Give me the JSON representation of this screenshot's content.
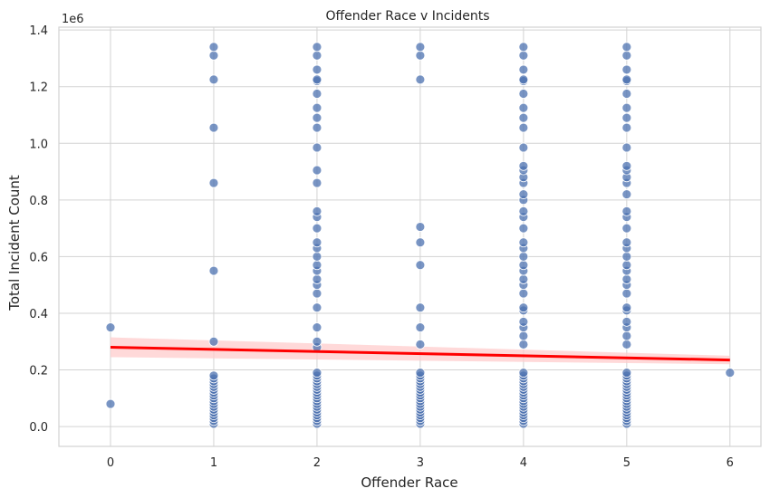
{
  "chart_data": {
    "type": "scatter",
    "title": "Offender Race v Incidents",
    "xlabel": "Offender Race",
    "ylabel": "Total Incident Count",
    "y_offset_label": "1e6",
    "xlim": [
      -0.5,
      6.3
    ],
    "ylim": [
      -0.07,
      1.41
    ],
    "x_ticks": [
      0,
      1,
      2,
      3,
      4,
      5,
      6
    ],
    "y_ticks": [
      0.0,
      0.2,
      0.4,
      0.6,
      0.8,
      1.0,
      1.2,
      1.4
    ],
    "y_tick_labels": [
      "0.0",
      "0.2",
      "0.4",
      "0.6",
      "0.8",
      "1.0",
      "1.2",
      "1.4"
    ],
    "grid": true,
    "colors": {
      "points": "#4c72b0",
      "regression_line": "#ff0000",
      "confidence_band": "#ffcccc",
      "grid": "#d3d3d3"
    },
    "series": [
      {
        "points": [
          {
            "x": 0,
            "y": [
              0.08,
              0.35
            ]
          },
          {
            "x": 1,
            "y": [
              0.01,
              0.02,
              0.03,
              0.04,
              0.05,
              0.06,
              0.07,
              0.08,
              0.09,
              0.1,
              0.11,
              0.12,
              0.13,
              0.14,
              0.15,
              0.16,
              0.17,
              0.18,
              0.3,
              0.55,
              0.86,
              1.055,
              1.225,
              1.31,
              1.34
            ]
          },
          {
            "x": 2,
            "y": [
              0.01,
              0.02,
              0.03,
              0.04,
              0.05,
              0.06,
              0.07,
              0.08,
              0.09,
              0.1,
              0.11,
              0.12,
              0.13,
              0.14,
              0.15,
              0.16,
              0.17,
              0.18,
              0.19,
              0.28,
              0.3,
              0.35,
              0.42,
              0.47,
              0.5,
              0.52,
              0.55,
              0.57,
              0.6,
              0.63,
              0.65,
              0.7,
              0.74,
              0.76,
              0.86,
              0.905,
              0.985,
              1.055,
              1.09,
              1.125,
              1.175,
              1.22,
              1.225,
              1.26,
              1.31,
              1.34
            ]
          },
          {
            "x": 3,
            "y": [
              0.01,
              0.02,
              0.03,
              0.04,
              0.05,
              0.06,
              0.07,
              0.08,
              0.09,
              0.1,
              0.11,
              0.12,
              0.13,
              0.14,
              0.15,
              0.16,
              0.17,
              0.18,
              0.19,
              0.29,
              0.35,
              0.42,
              0.57,
              0.65,
              0.705,
              1.225,
              1.31,
              1.34
            ]
          },
          {
            "x": 4,
            "y": [
              0.01,
              0.02,
              0.03,
              0.04,
              0.05,
              0.06,
              0.07,
              0.08,
              0.09,
              0.1,
              0.11,
              0.12,
              0.13,
              0.14,
              0.15,
              0.16,
              0.17,
              0.18,
              0.19,
              0.29,
              0.32,
              0.35,
              0.37,
              0.41,
              0.42,
              0.47,
              0.5,
              0.52,
              0.55,
              0.57,
              0.6,
              0.63,
              0.65,
              0.7,
              0.74,
              0.76,
              0.8,
              0.82,
              0.86,
              0.88,
              0.905,
              0.92,
              0.985,
              1.055,
              1.09,
              1.125,
              1.175,
              1.22,
              1.225,
              1.26,
              1.31,
              1.34
            ]
          },
          {
            "x": 5,
            "y": [
              0.01,
              0.02,
              0.03,
              0.04,
              0.05,
              0.06,
              0.07,
              0.08,
              0.09,
              0.1,
              0.11,
              0.12,
              0.13,
              0.14,
              0.15,
              0.16,
              0.17,
              0.18,
              0.19,
              0.29,
              0.32,
              0.35,
              0.37,
              0.41,
              0.42,
              0.47,
              0.5,
              0.52,
              0.55,
              0.57,
              0.6,
              0.63,
              0.65,
              0.7,
              0.74,
              0.76,
              0.82,
              0.86,
              0.88,
              0.905,
              0.92,
              0.985,
              1.055,
              1.09,
              1.125,
              1.175,
              1.22,
              1.225,
              1.26,
              1.31,
              1.34
            ]
          },
          {
            "x": 6,
            "y": [
              0.19
            ]
          }
        ]
      }
    ],
    "regression": {
      "x": [
        0,
        6
      ],
      "y": [
        0.28,
        0.235
      ],
      "ci_lower": [
        0.245,
        0.22
      ],
      "ci_upper": [
        0.315,
        0.25
      ]
    }
  }
}
